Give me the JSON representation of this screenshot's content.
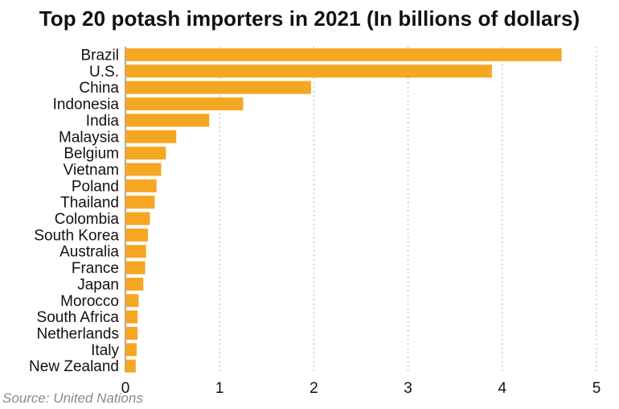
{
  "title": "Top 20 potash importers in 2021 (In billions of dollars)",
  "source": "Source: United Nations",
  "colors": {
    "bar": "#F5A623",
    "text": "#111111",
    "source": "#8a8a8a"
  },
  "chart_data": {
    "type": "bar",
    "orientation": "horizontal",
    "title": "Top 20 potash importers in 2021 (In billions of dollars)",
    "xlabel": "",
    "ylabel": "",
    "xlim": [
      0,
      5
    ],
    "xticks": [
      0,
      1,
      2,
      3,
      4,
      5
    ],
    "grid": "vertical dotted",
    "categories": [
      "Brazil",
      "U.S.",
      "China",
      "Indonesia",
      "India",
      "Malaysia",
      "Belgium",
      "Vietnam",
      "Poland",
      "Thailand",
      "Colombia",
      "South Korea",
      "Australia",
      "France",
      "Japan",
      "Morocco",
      "South Africa",
      "Netherlands",
      "Italy",
      "New Zealand"
    ],
    "values": [
      4.63,
      3.89,
      1.97,
      1.25,
      0.89,
      0.54,
      0.43,
      0.38,
      0.33,
      0.31,
      0.26,
      0.24,
      0.22,
      0.21,
      0.19,
      0.14,
      0.13,
      0.13,
      0.12,
      0.11
    ]
  }
}
